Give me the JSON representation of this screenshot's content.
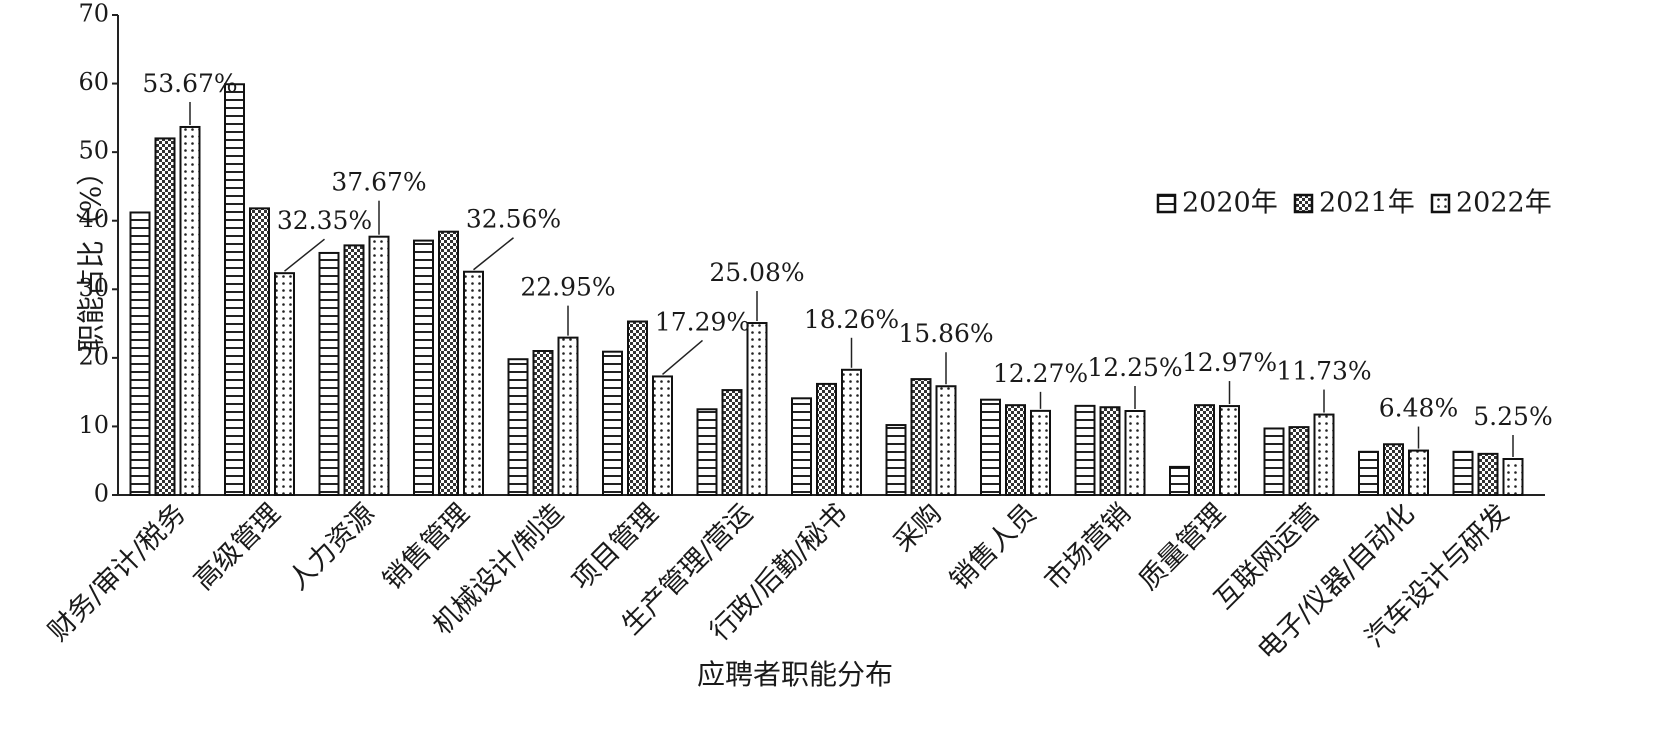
{
  "chart_data": {
    "type": "bar",
    "title": "",
    "xlabel": "应聘者职能分布",
    "ylabel": "职能占比（%）",
    "ylim": [
      0,
      70
    ],
    "yticks": [
      0,
      10,
      20,
      30,
      40,
      50,
      60,
      70
    ],
    "grid": false,
    "legend_position": "right",
    "categories": [
      "财务/审计/税务",
      "高级管理",
      "人力资源",
      "销售管理",
      "机械设计/制造",
      "项目管理",
      "生产管理/营运",
      "行政/后勤/秘书",
      "采购",
      "销售人员",
      "市场营销",
      "质量管理",
      "互联网运营",
      "电子/仪器/自动化",
      "汽车设计与研发"
    ],
    "series": [
      {
        "name": "2020年",
        "pattern": "horizontal-stripes",
        "values": [
          41.2,
          59.9,
          35.3,
          37.1,
          19.8,
          20.9,
          12.5,
          14.1,
          10.2,
          13.9,
          13.0,
          4.1,
          9.7,
          6.3,
          6.3
        ]
      },
      {
        "name": "2021年",
        "pattern": "checker",
        "values": [
          52.0,
          41.8,
          36.4,
          38.4,
          21.0,
          25.3,
          15.3,
          16.2,
          16.9,
          13.1,
          12.8,
          13.1,
          9.9,
          7.4,
          6.0
        ]
      },
      {
        "name": "2022年",
        "pattern": "dots",
        "values": [
          53.67,
          32.35,
          37.67,
          32.56,
          22.95,
          17.29,
          25.08,
          18.26,
          15.86,
          12.27,
          12.25,
          12.97,
          11.73,
          6.48,
          5.25
        ]
      }
    ],
    "data_labels": [
      "53.67%",
      "32.35%",
      "37.67%",
      "32.56%",
      "22.95%",
      "17.29%",
      "25.08%",
      "18.26%",
      "15.86%",
      "12.27%",
      "12.25%",
      "12.97%",
      "11.73%",
      "6.48%",
      "5.25%"
    ]
  }
}
